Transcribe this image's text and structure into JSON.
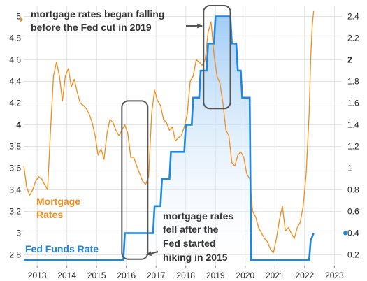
{
  "chart_data": {
    "type": "line",
    "title": "",
    "xlabel": "",
    "x_ticks": [
      "2013",
      "2014",
      "2015",
      "2016",
      "2017",
      "2018",
      "2019",
      "2020",
      "2021",
      "2022",
      "2023"
    ],
    "xlim": [
      2012.55,
      2023.25
    ],
    "y_left": {
      "label": "",
      "lim": [
        2.7,
        5.1
      ],
      "ticks": [
        "2.8",
        "3",
        "3.2",
        "3.4",
        "3.6",
        "3.8",
        "4",
        "4.2",
        "4.4",
        "4.6",
        "4.8",
        "5"
      ]
    },
    "y_right": {
      "label": "",
      "lim": [
        0.1,
        2.5
      ],
      "ticks": [
        "0.2",
        "0.4",
        "0.6",
        "0.8",
        "1",
        "1.2",
        "1.4",
        "1.6",
        "1.8",
        "2",
        "2.2",
        "2.4"
      ]
    },
    "grid": true,
    "colors": {
      "mortgage": "#f28c1c",
      "fed": "#1f87e0",
      "fed_fill_top": "#9ccaf5",
      "grid": "#e3e3e3",
      "box": "#555555"
    },
    "series": [
      {
        "name": "Mortgage Rates",
        "axis": "left",
        "x": [
          2012.55,
          2012.65,
          2012.75,
          2012.85,
          2012.95,
          2013.05,
          2013.15,
          2013.25,
          2013.35,
          2013.45,
          2013.55,
          2013.65,
          2013.75,
          2013.85,
          2013.95,
          2014.05,
          2014.15,
          2014.25,
          2014.35,
          2014.45,
          2014.55,
          2014.65,
          2014.75,
          2014.85,
          2014.95,
          2015.05,
          2015.15,
          2015.25,
          2015.35,
          2015.45,
          2015.55,
          2015.65,
          2015.75,
          2015.85,
          2015.95,
          2016.05,
          2016.15,
          2016.25,
          2016.35,
          2016.45,
          2016.55,
          2016.65,
          2016.75,
          2016.85,
          2016.95,
          2017.05,
          2017.15,
          2017.25,
          2017.35,
          2017.45,
          2017.55,
          2017.65,
          2017.75,
          2017.85,
          2017.95,
          2018.05,
          2018.15,
          2018.25,
          2018.35,
          2018.45,
          2018.55,
          2018.65,
          2018.75,
          2018.85,
          2018.95,
          2019.05,
          2019.15,
          2019.25,
          2019.35,
          2019.45,
          2019.55,
          2019.65,
          2019.75,
          2019.85,
          2019.95,
          2020.05,
          2020.15,
          2020.25,
          2020.35,
          2020.45,
          2020.55,
          2020.65,
          2020.75,
          2020.85,
          2020.95,
          2021.05,
          2021.15,
          2021.25,
          2021.35,
          2021.45,
          2021.55,
          2021.65,
          2021.75,
          2021.85,
          2021.95,
          2022.05,
          2022.15,
          2022.2,
          2022.25,
          2022.3
        ],
        "values": [
          3.62,
          3.42,
          3.35,
          3.4,
          3.48,
          3.52,
          3.5,
          3.45,
          3.4,
          3.95,
          4.45,
          4.58,
          4.45,
          4.22,
          4.45,
          4.52,
          4.35,
          4.42,
          4.3,
          4.2,
          4.18,
          4.15,
          4.1,
          4.02,
          3.9,
          3.72,
          3.78,
          3.68,
          3.92,
          4.05,
          4.02,
          3.95,
          3.9,
          3.95,
          4.0,
          3.92,
          3.7,
          3.7,
          3.62,
          3.55,
          3.48,
          3.45,
          3.52,
          4.1,
          4.32,
          4.22,
          4.18,
          4.05,
          4.02,
          3.95,
          3.98,
          3.85,
          3.88,
          3.9,
          3.98,
          4.1,
          4.4,
          4.45,
          4.6,
          4.58,
          4.55,
          4.6,
          4.85,
          4.95,
          4.65,
          4.45,
          4.38,
          4.2,
          3.95,
          3.9,
          3.65,
          3.62,
          3.72,
          3.75,
          3.7,
          3.55,
          3.5,
          3.2,
          3.15,
          3.05,
          3.0,
          2.95,
          2.92,
          2.85,
          2.82,
          2.95,
          3.12,
          3.25,
          3.02,
          3.05,
          3.0,
          2.95,
          3.05,
          3.1,
          3.25,
          3.55,
          4.1,
          4.6,
          4.9,
          5.05
        ]
      },
      {
        "name": "Fed Funds Rate",
        "axis": "right",
        "x": [
          2012.55,
          2015.9,
          2015.95,
          2016.9,
          2016.95,
          2017.15,
          2017.2,
          2017.45,
          2017.5,
          2017.95,
          2018.0,
          2018.2,
          2018.25,
          2018.45,
          2018.5,
          2018.7,
          2018.75,
          2018.95,
          2019.0,
          2019.5,
          2019.55,
          2019.7,
          2019.75,
          2019.85,
          2019.9,
          2020.15,
          2020.2,
          2022.15,
          2022.2,
          2022.3
        ],
        "values": [
          0.15,
          0.15,
          0.4,
          0.4,
          0.65,
          0.65,
          0.9,
          0.9,
          1.15,
          1.15,
          1.4,
          1.4,
          1.65,
          1.65,
          1.9,
          1.9,
          2.15,
          2.15,
          2.4,
          2.4,
          2.15,
          2.15,
          1.9,
          1.9,
          1.65,
          1.65,
          0.15,
          0.15,
          0.33,
          0.4
        ]
      }
    ],
    "labels": {
      "mortgage_1": "Mortgage",
      "mortgage_2": "Rates",
      "fed": "Fed Funds Rate"
    },
    "annotations": [
      {
        "lines": [
          "mortgage rates began falling",
          "before the Fed cut in 2019"
        ]
      },
      {
        "lines": [
          "mortgage rates",
          "fell after the",
          "Fed started",
          "hiking in 2015"
        ]
      }
    ],
    "highlight_boxes": [
      {
        "x_range": [
          2015.85,
          2016.72
        ],
        "y_range": [
          2.76,
          4.22
        ]
      },
      {
        "x_range": [
          2018.6,
          2019.5
        ],
        "y_range": [
          4.15,
          5.1
        ]
      }
    ]
  }
}
